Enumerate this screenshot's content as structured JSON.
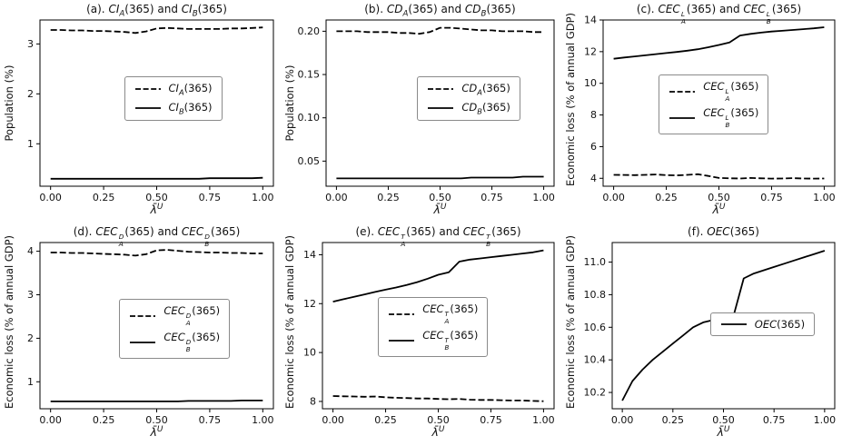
{
  "figure": {
    "background": "#ffffff",
    "line_color": "#000000"
  },
  "chart_data": [
    {
      "id": "a",
      "type": "line",
      "title": "(a). $CI_A(365)$ and $CI_B(365)$",
      "xlabel": "$λ̄^U$",
      "ylabel": "Population (%)",
      "xlim": [
        -0.05,
        1.05
      ],
      "ylim": [
        0.15,
        3.48
      ],
      "xticks": [
        0,
        0.25,
        0.5,
        0.75,
        1.0
      ],
      "xtick_labels": [
        "0.00",
        "0.25",
        "0.50",
        "0.75",
        "1.00"
      ],
      "yticks": [
        1,
        2,
        3
      ],
      "ytick_labels": [
        "1",
        "2",
        "3"
      ],
      "legend": {
        "x": 0.36,
        "y": 0.34
      },
      "x": [
        0,
        0.05,
        0.1,
        0.15,
        0.2,
        0.25,
        0.3,
        0.35,
        0.4,
        0.45,
        0.5,
        0.55,
        0.6,
        0.65,
        0.7,
        0.75,
        0.8,
        0.85,
        0.9,
        0.95,
        1.0
      ],
      "series": [
        {
          "name": "$CI_A(365)$",
          "style": "dashed",
          "y": [
            3.28,
            3.28,
            3.27,
            3.27,
            3.26,
            3.26,
            3.25,
            3.24,
            3.22,
            3.25,
            3.31,
            3.32,
            3.31,
            3.3,
            3.3,
            3.3,
            3.3,
            3.31,
            3.31,
            3.32,
            3.33
          ]
        },
        {
          "name": "$CI_B(365)$",
          "style": "solid",
          "y": [
            0.3,
            0.3,
            0.3,
            0.3,
            0.3,
            0.3,
            0.3,
            0.3,
            0.3,
            0.3,
            0.3,
            0.3,
            0.3,
            0.3,
            0.3,
            0.31,
            0.31,
            0.31,
            0.31,
            0.31,
            0.32
          ]
        }
      ]
    },
    {
      "id": "b",
      "type": "line",
      "title": "(b). $CD_A(365)$ and $CD_B(365)$",
      "xlabel": "$λ̄^U$",
      "ylabel": "Population (%)",
      "xlim": [
        -0.05,
        1.05
      ],
      "ylim": [
        0.021,
        0.213
      ],
      "xticks": [
        0,
        0.25,
        0.5,
        0.75,
        1.0
      ],
      "xtick_labels": [
        "0.00",
        "0.25",
        "0.50",
        "0.75",
        "1.00"
      ],
      "yticks": [
        0.05,
        0.1,
        0.15,
        0.2
      ],
      "ytick_labels": [
        "0.05",
        "0.10",
        "0.15",
        "0.20"
      ],
      "legend": {
        "x": 0.4,
        "y": 0.34
      },
      "x": [
        0,
        0.05,
        0.1,
        0.15,
        0.2,
        0.25,
        0.3,
        0.35,
        0.4,
        0.45,
        0.5,
        0.55,
        0.6,
        0.65,
        0.7,
        0.75,
        0.8,
        0.85,
        0.9,
        0.95,
        1.0
      ],
      "series": [
        {
          "name": "$CD_A(365)$",
          "style": "dashed",
          "y": [
            0.2,
            0.2,
            0.2,
            0.199,
            0.199,
            0.199,
            0.198,
            0.198,
            0.197,
            0.199,
            0.204,
            0.204,
            0.203,
            0.202,
            0.201,
            0.201,
            0.2,
            0.2,
            0.2,
            0.199,
            0.199
          ]
        },
        {
          "name": "$CD_B(365)$",
          "style": "solid",
          "y": [
            0.03,
            0.03,
            0.03,
            0.03,
            0.03,
            0.03,
            0.03,
            0.03,
            0.03,
            0.03,
            0.03,
            0.03,
            0.03,
            0.031,
            0.031,
            0.031,
            0.031,
            0.031,
            0.032,
            0.032,
            0.032
          ]
        }
      ]
    },
    {
      "id": "c",
      "type": "line",
      "title": "(c). $CEC^L_A(365)$ and $CEC^L_B(365)$",
      "xlabel": "$λ̄^U$",
      "ylabel": "Economic loss (% of annual GDP)",
      "xlim": [
        -0.05,
        1.05
      ],
      "ylim": [
        3.5,
        14.0
      ],
      "xticks": [
        0,
        0.25,
        0.5,
        0.75,
        1.0
      ],
      "xtick_labels": [
        "0.00",
        "0.25",
        "0.50",
        "0.75",
        "1.00"
      ],
      "yticks": [
        4,
        6,
        8,
        10,
        12,
        14
      ],
      "ytick_labels": [
        "4",
        "6",
        "8",
        "10",
        "12",
        "14"
      ],
      "legend": {
        "x": 0.24,
        "y": 0.33
      },
      "x": [
        0,
        0.05,
        0.1,
        0.15,
        0.2,
        0.25,
        0.3,
        0.35,
        0.4,
        0.45,
        0.5,
        0.55,
        0.6,
        0.65,
        0.7,
        0.75,
        0.8,
        0.85,
        0.9,
        0.95,
        1.0
      ],
      "series": [
        {
          "name": "$CEC^L_A(365)$",
          "style": "dashed",
          "y": [
            4.22,
            4.21,
            4.2,
            4.22,
            4.24,
            4.2,
            4.18,
            4.22,
            4.26,
            4.15,
            4.02,
            4.0,
            3.99,
            4.02,
            4.0,
            3.98,
            3.99,
            4.01,
            3.99,
            3.98,
            3.99
          ]
        },
        {
          "name": "$CEC^L_B(365)$",
          "style": "solid",
          "y": [
            11.55,
            11.63,
            11.7,
            11.77,
            11.84,
            11.91,
            11.98,
            12.06,
            12.15,
            12.28,
            12.42,
            12.58,
            13.02,
            13.12,
            13.2,
            13.27,
            13.32,
            13.37,
            13.42,
            13.47,
            13.54
          ]
        }
      ]
    },
    {
      "id": "d",
      "type": "line",
      "title": "(d). $CEC^D_A(365)$ and $CEC^D_B(365)$",
      "xlabel": "$λ̄^U$",
      "ylabel": "Economic loss (% of annual GDP)",
      "xlim": [
        -0.05,
        1.05
      ],
      "ylim": [
        0.38,
        4.2
      ],
      "xticks": [
        0,
        0.25,
        0.5,
        0.75,
        1.0
      ],
      "xtick_labels": [
        "0.00",
        "0.25",
        "0.50",
        "0.75",
        "1.00"
      ],
      "yticks": [
        1,
        2,
        3,
        4
      ],
      "ytick_labels": [
        "1",
        "2",
        "3",
        "4"
      ],
      "legend": {
        "x": 0.34,
        "y": 0.34
      },
      "x": [
        0,
        0.05,
        0.1,
        0.15,
        0.2,
        0.25,
        0.3,
        0.35,
        0.4,
        0.45,
        0.5,
        0.55,
        0.6,
        0.65,
        0.7,
        0.75,
        0.8,
        0.85,
        0.9,
        0.95,
        1.0
      ],
      "series": [
        {
          "name": "$CEC^D_A(365)$",
          "style": "dashed",
          "y": [
            3.97,
            3.97,
            3.96,
            3.96,
            3.95,
            3.94,
            3.93,
            3.92,
            3.9,
            3.93,
            4.02,
            4.03,
            4.01,
            3.99,
            3.98,
            3.97,
            3.97,
            3.96,
            3.96,
            3.95,
            3.95
          ]
        },
        {
          "name": "$CEC^D_B(365)$",
          "style": "solid",
          "y": [
            0.55,
            0.55,
            0.55,
            0.55,
            0.55,
            0.55,
            0.55,
            0.55,
            0.55,
            0.55,
            0.55,
            0.55,
            0.55,
            0.56,
            0.56,
            0.56,
            0.56,
            0.56,
            0.57,
            0.57,
            0.57
          ]
        }
      ]
    },
    {
      "id": "e",
      "type": "line",
      "title": "(e). $CEC^T_A(365)$ and $CEC^T_B(365)$",
      "xlabel": "$λ̄^U$",
      "ylabel": "Economic loss (% of annual GDP)",
      "xlim": [
        -0.05,
        1.05
      ],
      "ylim": [
        7.7,
        14.5
      ],
      "xticks": [
        0,
        0.25,
        0.5,
        0.75,
        1.0
      ],
      "xtick_labels": [
        "0.00",
        "0.25",
        "0.50",
        "0.75",
        "1.00"
      ],
      "yticks": [
        8,
        10,
        12,
        14
      ],
      "ytick_labels": [
        "8",
        "10",
        "12",
        "14"
      ],
      "legend": {
        "x": 0.24,
        "y": 0.33
      },
      "x": [
        0,
        0.05,
        0.1,
        0.15,
        0.2,
        0.25,
        0.3,
        0.35,
        0.4,
        0.45,
        0.5,
        0.55,
        0.6,
        0.65,
        0.7,
        0.75,
        0.8,
        0.85,
        0.9,
        0.95,
        1.0
      ],
      "series": [
        {
          "name": "$CEC^T_A(365)$",
          "style": "dashed",
          "y": [
            8.22,
            8.21,
            8.2,
            8.19,
            8.2,
            8.17,
            8.15,
            8.14,
            8.12,
            8.12,
            8.1,
            8.09,
            8.1,
            8.07,
            8.06,
            8.06,
            8.05,
            8.04,
            8.04,
            8.02,
            8.01
          ]
        },
        {
          "name": "$CEC^T_B(365)$",
          "style": "solid",
          "y": [
            12.08,
            12.18,
            12.28,
            12.38,
            12.48,
            12.57,
            12.66,
            12.76,
            12.88,
            13.02,
            13.18,
            13.28,
            13.72,
            13.8,
            13.85,
            13.9,
            13.95,
            14.0,
            14.05,
            14.1,
            14.18
          ]
        }
      ]
    },
    {
      "id": "f",
      "type": "line",
      "title": "(f). $OEC(365)$",
      "xlabel": "$λ̄^U$",
      "ylabel": "Economic loss (% of annual GDP)",
      "xlim": [
        -0.05,
        1.05
      ],
      "ylim": [
        10.1,
        11.12
      ],
      "xticks": [
        0,
        0.25,
        0.5,
        0.75,
        1.0
      ],
      "xtick_labels": [
        "0.00",
        "0.25",
        "0.50",
        "0.75",
        "1.00"
      ],
      "yticks": [
        10.2,
        10.4,
        10.6,
        10.8,
        11.0
      ],
      "ytick_labels": [
        "10.2",
        "10.4",
        "10.6",
        "10.8",
        "11.0"
      ],
      "legend": {
        "x": 0.44,
        "y": 0.42
      },
      "x": [
        0,
        0.05,
        0.1,
        0.15,
        0.2,
        0.25,
        0.3,
        0.35,
        0.4,
        0.45,
        0.5,
        0.55,
        0.6,
        0.65,
        0.7,
        0.75,
        0.8,
        0.85,
        0.9,
        0.95,
        1.0
      ],
      "series": [
        {
          "name": "$OEC(365)$",
          "style": "solid",
          "y": [
            10.15,
            10.27,
            10.34,
            10.4,
            10.45,
            10.5,
            10.55,
            10.6,
            10.63,
            10.645,
            10.65,
            10.67,
            10.9,
            10.93,
            10.95,
            10.97,
            10.99,
            11.01,
            11.03,
            11.05,
            11.07
          ]
        }
      ]
    }
  ]
}
